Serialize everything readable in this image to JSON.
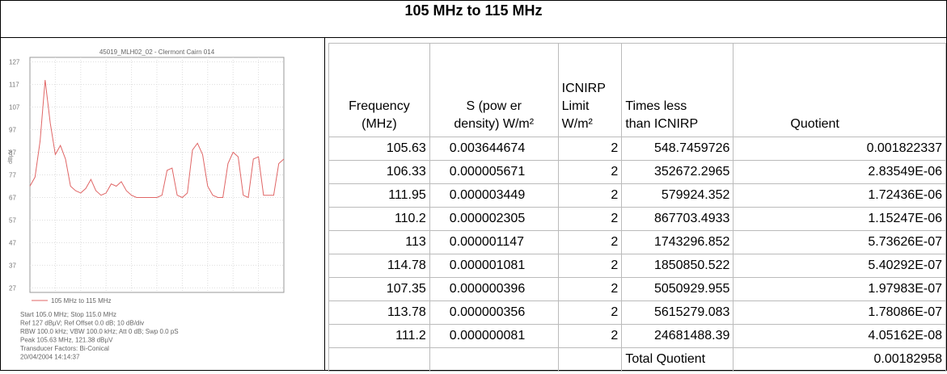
{
  "title": "105 MHz to 115 MHz",
  "chart_data": {
    "type": "line",
    "title": "45019_MLH02_02 - Clermont Cairn 014",
    "y_label": "dBµV",
    "x": [
      105.0,
      105.2,
      105.4,
      105.6,
      105.8,
      106.0,
      106.2,
      106.4,
      106.6,
      106.8,
      107.0,
      107.2,
      107.4,
      107.6,
      107.8,
      108.0,
      108.2,
      108.4,
      108.6,
      108.8,
      109.0,
      109.2,
      109.4,
      109.6,
      109.8,
      110.0,
      110.2,
      110.4,
      110.6,
      110.8,
      111.0,
      111.2,
      111.4,
      111.6,
      111.8,
      112.0,
      112.2,
      112.4,
      112.6,
      112.8,
      113.0,
      113.2,
      113.4,
      113.6,
      113.8,
      114.0,
      114.2,
      114.4,
      114.6,
      114.8,
      115.0
    ],
    "series": [
      {
        "name": "105 MHz to 115 MHz",
        "color": "#e06666",
        "values": [
          72,
          76,
          92,
          119,
          100,
          86,
          90,
          84,
          72,
          70,
          69,
          71,
          75,
          70,
          68,
          69,
          73,
          72,
          74,
          70,
          68,
          67,
          67,
          67,
          67,
          67,
          68,
          79,
          80,
          68,
          67,
          69,
          88,
          91,
          86,
          72,
          68,
          67,
          67,
          82,
          87,
          85,
          68,
          67,
          84,
          85,
          68,
          68,
          68,
          82,
          84
        ]
      }
    ],
    "xlim": [
      105.0,
      115.0
    ],
    "ylim": [
      25,
      129
    ],
    "yticks": [
      127,
      117,
      107,
      97,
      87,
      77,
      67,
      57,
      47,
      37,
      27
    ],
    "grid": true,
    "footer": [
      "Start 105.0 MHz; Stop 115.0 MHz",
      "Ref 127 dBµV; Ref Offset 0.0 dB; 10 dB/div",
      "RBW 100.0 kHz; VBW 100.0 kHz; Att 0 dB; Swp 0.0 pS",
      "Peak 105.63 MHz, 121.38 dBµV",
      "Transducer Factors: Bi-Conical",
      "20/04/2004 14:14:37"
    ]
  },
  "table": {
    "headers": [
      [
        "Frequency",
        "(MHz)"
      ],
      [
        "S (pow er",
        "density) W/m²"
      ],
      [
        "ICNIRP",
        "Limit",
        "W/m²"
      ],
      [
        "Times less",
        "than ICNIRP"
      ],
      [
        "Quotient"
      ]
    ],
    "rows": [
      [
        "105.63",
        "0.003644674",
        "2",
        "548.7459726",
        "0.001822337"
      ],
      [
        "106.33",
        "0.000005671",
        "2",
        "352672.2965",
        "2.83549E-06"
      ],
      [
        "111.95",
        "0.000003449",
        "2",
        "579924.352",
        "1.72436E-06"
      ],
      [
        "110.2",
        "0.000002305",
        "2",
        "867703.4933",
        "1.15247E-06"
      ],
      [
        "113",
        "0.000001147",
        "2",
        "1743296.852",
        "5.73626E-07"
      ],
      [
        "114.78",
        "0.000001081",
        "2",
        "1850850.522",
        "5.40292E-07"
      ],
      [
        "107.35",
        "0.000000396",
        "2",
        "5050929.955",
        "1.97983E-07"
      ],
      [
        "113.78",
        "0.000000356",
        "2",
        "5615279.083",
        "1.78086E-07"
      ],
      [
        "111.2",
        "0.000000081",
        "2",
        "24681488.39",
        "4.05162E-08"
      ]
    ],
    "total": {
      "label": "Total Quotient",
      "value": "0.00182958"
    }
  }
}
